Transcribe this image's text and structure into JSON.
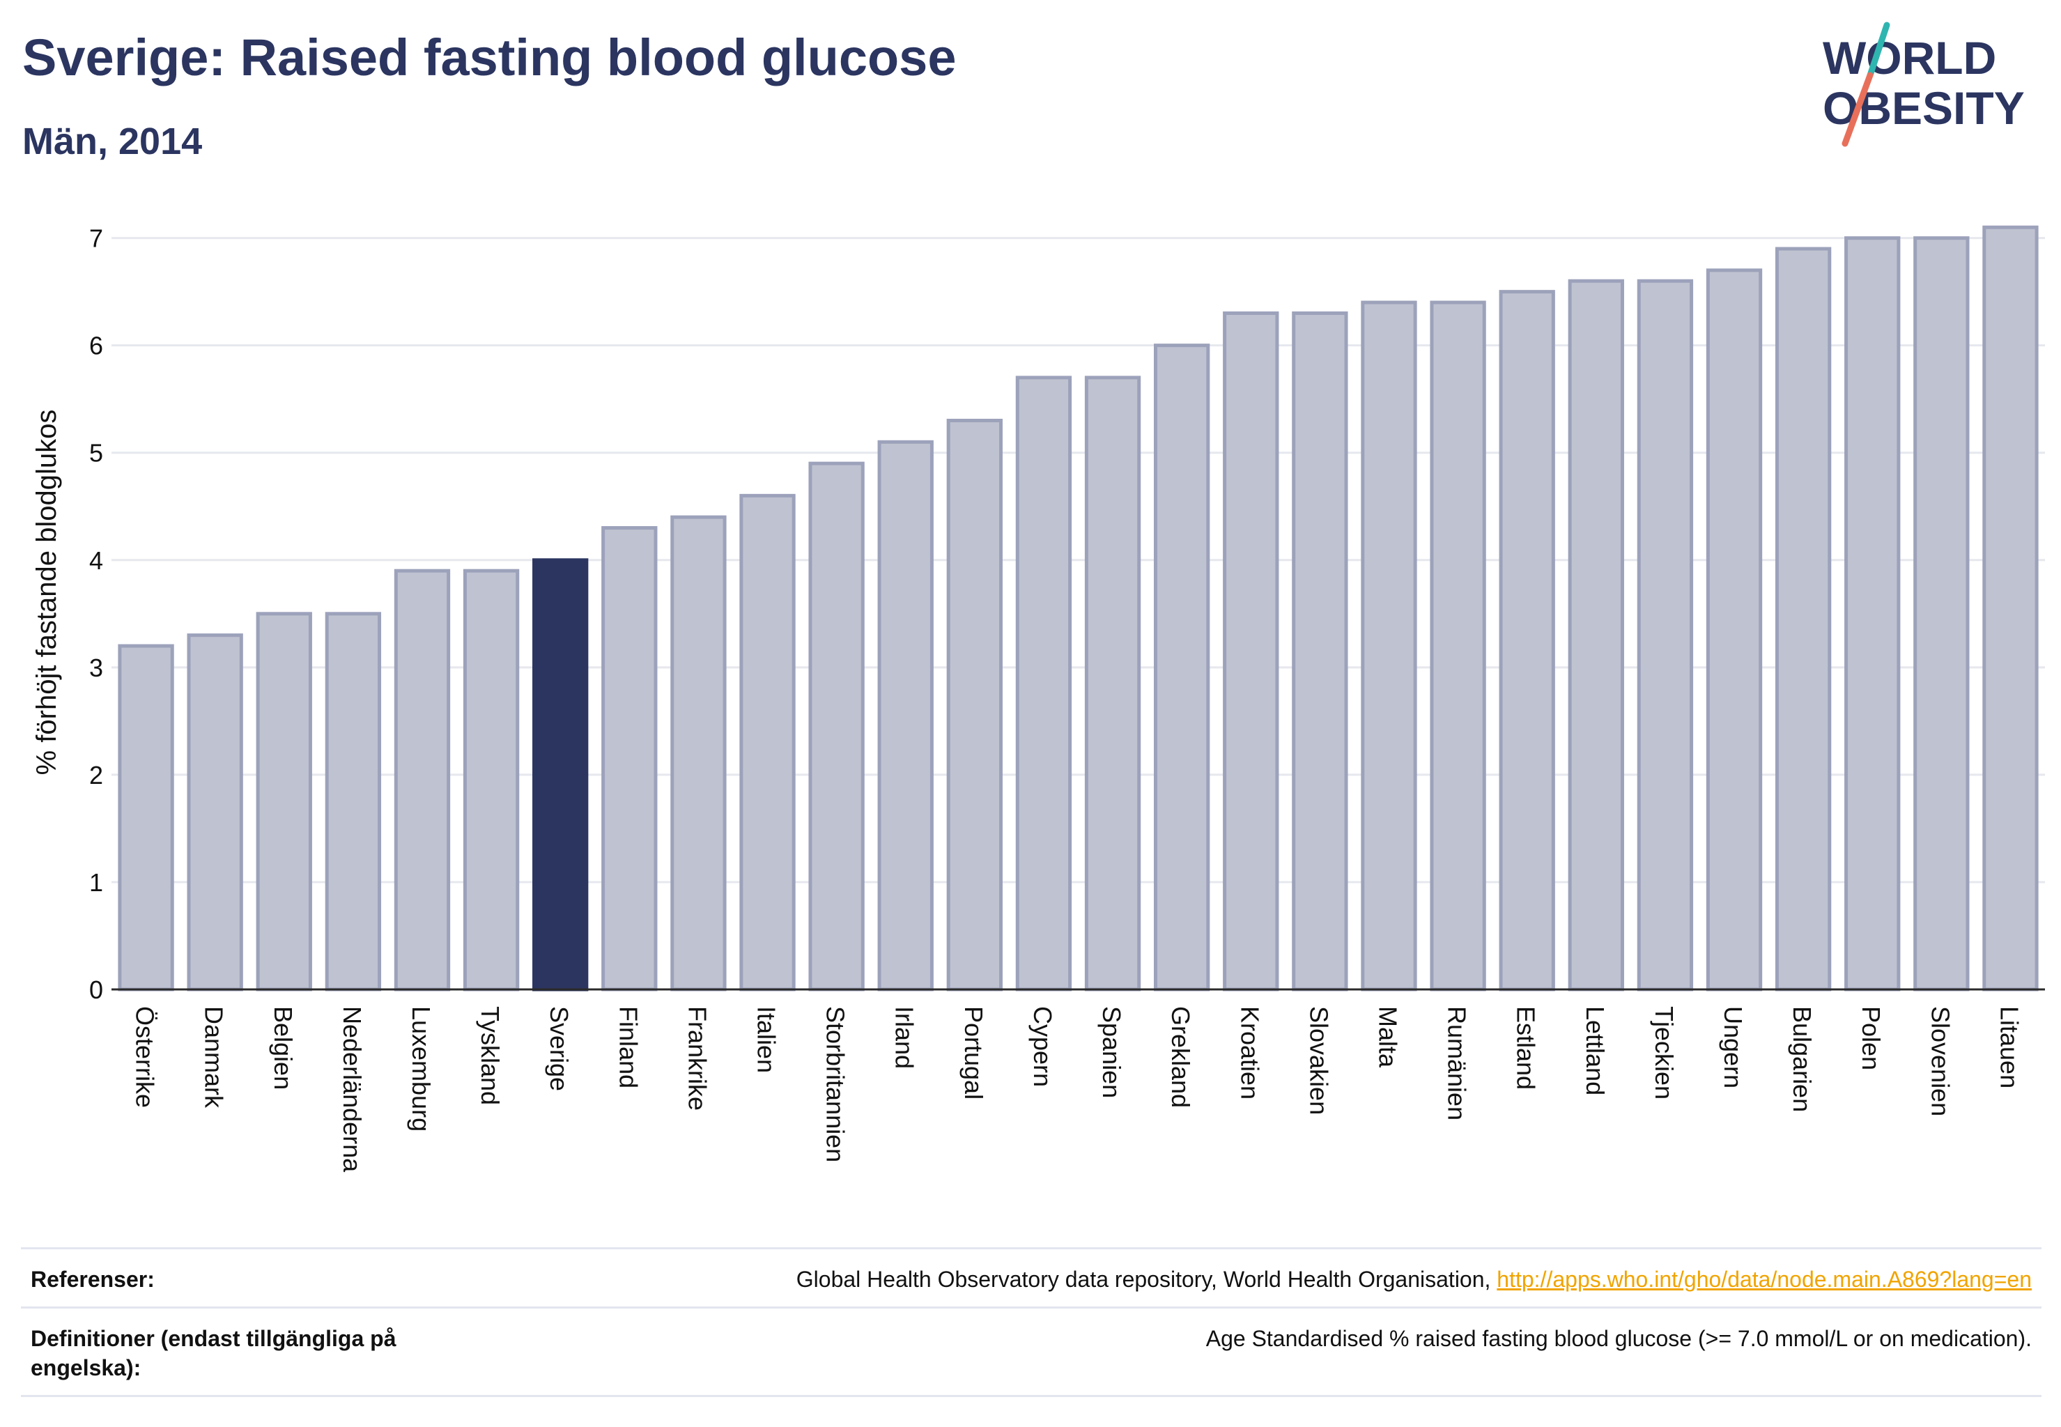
{
  "header": {
    "title": "Sverige: Raised fasting blood glucose",
    "subtitle": "Män, 2014"
  },
  "logo": {
    "line1": "WORLD",
    "line2": "OBESITY",
    "slash_color_top": "#2fb5b0",
    "slash_color_bottom": "#e8705b"
  },
  "colors": {
    "bar_default": "#bfc2d0",
    "bar_default_border": "#9da2bb",
    "bar_highlight": "#2b3560",
    "text_dark": "#2b3560",
    "link": "#f0a400"
  },
  "chart_data": {
    "type": "bar",
    "categories": [
      "Österrike",
      "Danmark",
      "Belgien",
      "Nederländerna",
      "Luxemburg",
      "Tyskland",
      "Sverige",
      "Finland",
      "Frankrike",
      "Italien",
      "Storbritannien",
      "Irland",
      "Portugal",
      "Cypern",
      "Spanien",
      "Grekland",
      "Kroatien",
      "Slovakien",
      "Malta",
      "Rumänien",
      "Estland",
      "Lettland",
      "Tjeckien",
      "Ungern",
      "Bulgarien",
      "Polen",
      "Slovenien",
      "Litauen"
    ],
    "values": [
      3.2,
      3.3,
      3.5,
      3.5,
      3.9,
      3.9,
      4.0,
      4.3,
      4.4,
      4.6,
      4.9,
      5.1,
      5.3,
      5.7,
      5.7,
      6.0,
      6.3,
      6.3,
      6.4,
      6.4,
      6.5,
      6.6,
      6.6,
      6.7,
      6.9,
      7.0,
      7.0,
      7.1
    ],
    "highlight": "Sverige",
    "ylabel": "% förhöjt fastande blodglukos",
    "ylim": [
      0,
      7.4
    ],
    "yticks": [
      0,
      1,
      2,
      3,
      4,
      5,
      6,
      7
    ],
    "grid": true
  },
  "references": {
    "ref_label": "Referenser:",
    "ref_text": "Global Health Observatory data repository, World Health Organisation,",
    "ref_link": "http://apps.who.int/gho/data/node.main.A869?lang=en",
    "def_label": "Definitioner (endast tillgängliga på engelska):",
    "def_text": "Age Standardised % raised fasting blood glucose (>= 7.0 mmol/L or on medication)."
  }
}
